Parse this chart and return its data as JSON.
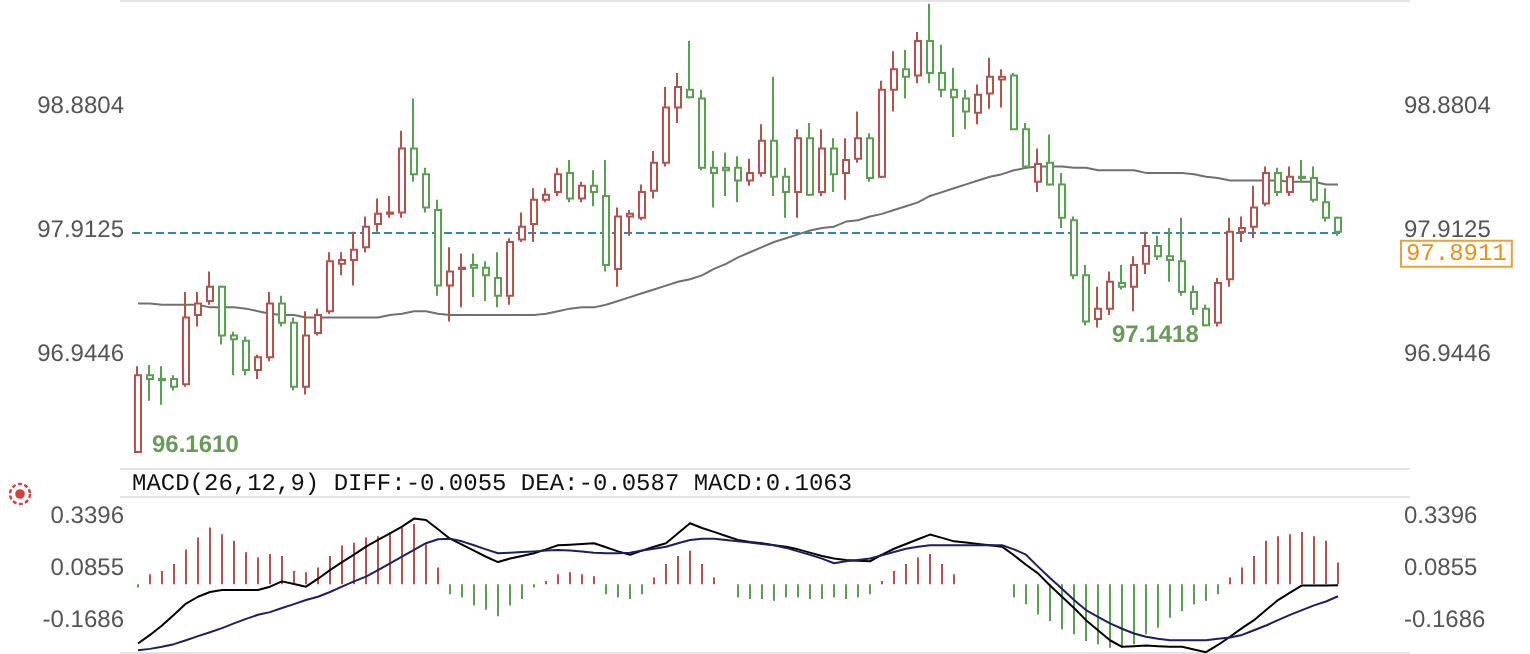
{
  "chart_data": [
    {
      "type": "candlestick",
      "categories": [
        null,
        null,
        null,
        null,
        null,
        null,
        null,
        null,
        null,
        null,
        null,
        null,
        null,
        null,
        null,
        null,
        null,
        null,
        null,
        null,
        null,
        null,
        null,
        null,
        null,
        null,
        null,
        null,
        null,
        null,
        null,
        null,
        null,
        null,
        null,
        null,
        null,
        null,
        null,
        null,
        null,
        null,
        null,
        null,
        null,
        null,
        null,
        null,
        null,
        null,
        null,
        null,
        null,
        null,
        null,
        null,
        null,
        null,
        null,
        null,
        null,
        null,
        null,
        null,
        null,
        null,
        null,
        null,
        null,
        null,
        null,
        null,
        null,
        null,
        null,
        null,
        null,
        null,
        null,
        null,
        null,
        null,
        null,
        null,
        null,
        null,
        null,
        null,
        null,
        null,
        null,
        null,
        null,
        null,
        null,
        null,
        null,
        null,
        null,
        null,
        null
      ],
      "ohlc": [
        [
          96.17,
          96.84,
          96.161,
          96.77
        ],
        [
          96.77,
          96.85,
          96.57,
          96.74
        ],
        [
          96.74,
          96.84,
          96.54,
          96.73
        ],
        [
          96.74,
          96.77,
          96.65,
          96.68
        ],
        [
          96.7,
          97.42,
          96.68,
          97.22
        ],
        [
          97.24,
          97.42,
          97.15,
          97.33
        ],
        [
          97.35,
          97.58,
          97.32,
          97.46
        ],
        [
          97.46,
          97.47,
          97.01,
          97.08
        ],
        [
          97.08,
          97.11,
          96.77,
          97.05
        ],
        [
          97.04,
          97.07,
          96.77,
          96.81
        ],
        [
          96.81,
          96.93,
          96.74,
          96.91
        ],
        [
          96.91,
          97.42,
          96.88,
          97.33
        ],
        [
          97.33,
          97.39,
          97.15,
          97.18
        ],
        [
          97.18,
          97.22,
          96.65,
          96.68
        ],
        [
          96.68,
          97.27,
          96.62,
          97.08
        ],
        [
          97.1,
          97.29,
          97.08,
          97.24
        ],
        [
          97.27,
          97.73,
          97.25,
          97.66
        ],
        [
          97.64,
          97.73,
          97.55,
          97.67
        ],
        [
          97.67,
          97.89,
          97.47,
          97.75
        ],
        [
          97.77,
          98.01,
          97.73,
          97.93
        ],
        [
          97.95,
          98.15,
          97.89,
          98.03
        ],
        [
          98.03,
          98.17,
          98.0,
          98.04
        ],
        [
          98.04,
          98.68,
          98.0,
          98.54
        ],
        [
          98.54,
          98.93,
          98.28,
          98.34
        ],
        [
          98.34,
          98.39,
          98.04,
          98.08
        ],
        [
          98.06,
          98.14,
          97.39,
          97.47
        ],
        [
          97.47,
          97.77,
          97.19,
          97.58
        ],
        [
          97.6,
          97.72,
          97.3,
          97.61
        ],
        [
          97.63,
          97.72,
          97.38,
          97.61
        ],
        [
          97.61,
          97.66,
          97.35,
          97.55
        ],
        [
          97.53,
          97.73,
          97.3,
          97.39
        ],
        [
          97.39,
          97.84,
          97.32,
          97.81
        ],
        [
          97.83,
          98.04,
          97.81,
          97.93
        ],
        [
          97.95,
          98.23,
          97.81,
          98.14
        ],
        [
          98.14,
          98.23,
          98.12,
          98.18
        ],
        [
          98.2,
          98.39,
          98.17,
          98.34
        ],
        [
          98.35,
          98.45,
          98.12,
          98.15
        ],
        [
          98.15,
          98.28,
          98.12,
          98.25
        ],
        [
          98.25,
          98.37,
          98.09,
          98.2
        ],
        [
          98.17,
          98.45,
          97.58,
          97.63
        ],
        [
          97.6,
          98.08,
          97.46,
          98.01
        ],
        [
          98.01,
          98.06,
          97.86,
          98.03
        ],
        [
          98.0,
          98.26,
          97.98,
          98.2
        ],
        [
          98.21,
          98.52,
          98.15,
          98.43
        ],
        [
          98.43,
          99.02,
          98.4,
          98.86
        ],
        [
          98.86,
          99.13,
          98.74,
          99.02
        ],
        [
          99.0,
          99.38,
          98.93,
          98.94
        ],
        [
          98.93,
          99.0,
          98.37,
          98.39
        ],
        [
          98.39,
          98.52,
          98.08,
          98.35
        ],
        [
          98.39,
          98.51,
          98.17,
          98.37
        ],
        [
          98.39,
          98.48,
          98.12,
          98.29
        ],
        [
          98.29,
          98.46,
          98.25,
          98.35
        ],
        [
          98.35,
          98.73,
          98.32,
          98.6
        ],
        [
          98.6,
          99.1,
          98.17,
          98.32
        ],
        [
          98.32,
          98.39,
          98.0,
          98.2
        ],
        [
          98.2,
          98.69,
          98.0,
          98.62
        ],
        [
          98.62,
          98.74,
          98.17,
          98.18
        ],
        [
          98.2,
          98.69,
          98.17,
          98.54
        ],
        [
          98.54,
          98.62,
          98.2,
          98.34
        ],
        [
          98.35,
          98.62,
          98.14,
          98.45
        ],
        [
          98.46,
          98.83,
          98.43,
          98.62
        ],
        [
          98.62,
          98.66,
          98.28,
          98.31
        ],
        [
          98.32,
          99.07,
          98.31,
          99.0
        ],
        [
          99.0,
          99.3,
          98.83,
          99.16
        ],
        [
          99.16,
          99.31,
          98.93,
          99.1
        ],
        [
          99.11,
          99.45,
          99.05,
          99.38
        ],
        [
          99.38,
          99.67,
          99.05,
          99.13
        ],
        [
          99.13,
          99.35,
          98.94,
          99.0
        ],
        [
          99.0,
          99.17,
          98.63,
          98.94
        ],
        [
          98.93,
          99.0,
          98.69,
          98.83
        ],
        [
          98.82,
          99.04,
          98.73,
          98.96
        ],
        [
          98.97,
          99.25,
          98.85,
          99.1
        ],
        [
          99.08,
          99.16,
          98.86,
          99.1
        ],
        [
          99.11,
          99.13,
          98.69,
          98.69
        ],
        [
          98.69,
          98.74,
          98.39,
          98.4
        ],
        [
          98.28,
          98.54,
          98.2,
          98.42
        ],
        [
          98.43,
          98.65,
          98.25,
          98.26
        ],
        [
          98.26,
          98.35,
          97.92,
          98.0
        ],
        [
          97.98,
          98.01,
          97.52,
          97.55
        ],
        [
          97.55,
          97.63,
          97.16,
          97.19
        ],
        [
          97.21,
          97.46,
          97.1418,
          97.29
        ],
        [
          97.29,
          97.58,
          97.24,
          97.5
        ],
        [
          97.49,
          97.63,
          97.44,
          97.46
        ],
        [
          97.46,
          97.7,
          97.27,
          97.63
        ],
        [
          97.64,
          97.89,
          97.56,
          97.78
        ],
        [
          97.78,
          97.86,
          97.67,
          97.7
        ],
        [
          97.7,
          97.92,
          97.5,
          97.67
        ],
        [
          97.66,
          98.0,
          97.39,
          97.42
        ],
        [
          97.42,
          97.47,
          97.24,
          97.29
        ],
        [
          97.29,
          97.32,
          97.15,
          97.16
        ],
        [
          97.18,
          97.53,
          97.15,
          97.49
        ],
        [
          97.52,
          98.0,
          97.46,
          97.89
        ],
        [
          97.89,
          98.01,
          97.81,
          97.92
        ],
        [
          97.93,
          98.25,
          97.84,
          98.08
        ],
        [
          98.11,
          98.4,
          98.09,
          98.35
        ],
        [
          98.35,
          98.39,
          98.17,
          98.2
        ],
        [
          98.2,
          98.4,
          98.17,
          98.32
        ],
        [
          98.32,
          98.45,
          98.28,
          98.31
        ],
        [
          98.31,
          98.4,
          98.12,
          98.14
        ],
        [
          98.12,
          98.23,
          97.97,
          98.0
        ],
        [
          98.0,
          98.01,
          97.86,
          97.8911
        ]
      ],
      "colors": [
        "#b5514f",
        "#5d9e55",
        "#5d9e55",
        "#5d9e55",
        "#b5514f",
        "#b5514f",
        "#b5514f",
        "#5d9e55",
        "#5d9e55",
        "#5d9e55",
        "#b5514f",
        "#b5514f",
        "#5d9e55",
        "#5d9e55",
        "#b5514f",
        "#b5514f",
        "#b5514f",
        "#b5514f",
        "#b5514f",
        "#b5514f",
        "#b5514f",
        "#b5514f",
        "#b5514f",
        "#5d9e55",
        "#5d9e55",
        "#5d9e55",
        "#b5514f",
        "#b5514f",
        "#5d9e55",
        "#5d9e55",
        "#5d9e55",
        "#b5514f",
        "#b5514f",
        "#b5514f",
        "#b5514f",
        "#b5514f",
        "#5d9e55",
        "#b5514f",
        "#5d9e55",
        "#5d9e55",
        "#b5514f",
        "#b5514f",
        "#b5514f",
        "#b5514f",
        "#b5514f",
        "#b5514f",
        "#5d9e55",
        "#5d9e55",
        "#5d9e55",
        "#5d9e55",
        "#5d9e55",
        "#b5514f",
        "#b5514f",
        "#5d9e55",
        "#5d9e55",
        "#b5514f",
        "#5d9e55",
        "#b5514f",
        "#5d9e55",
        "#b5514f",
        "#b5514f",
        "#5d9e55",
        "#b5514f",
        "#b5514f",
        "#5d9e55",
        "#b5514f",
        "#5d9e55",
        "#5d9e55",
        "#5d9e55",
        "#5d9e55",
        "#b5514f",
        "#b5514f",
        "#b5514f",
        "#5d9e55",
        "#5d9e55",
        "#b5514f",
        "#5d9e55",
        "#5d9e55",
        "#5d9e55",
        "#5d9e55",
        "#b5514f",
        "#b5514f",
        "#5d9e55",
        "#b5514f",
        "#b5514f",
        "#5d9e55",
        "#5d9e55",
        "#5d9e55",
        "#5d9e55",
        "#5d9e55",
        "#b5514f",
        "#b5514f",
        "#b5514f",
        "#b5514f",
        "#b5514f",
        "#5d9e55",
        "#b5514f",
        "#5d9e55",
        "#5d9e55",
        "#5d9e55",
        "#5d9e55"
      ],
      "series": [
        {
          "type": "line",
          "color": "#707070",
          "values": [
            97.33,
            97.33,
            97.32,
            97.32,
            97.32,
            97.32,
            97.3,
            97.3,
            97.3,
            97.29,
            97.27,
            97.25,
            97.24,
            97.24,
            97.22,
            97.22,
            97.22,
            97.22,
            97.22,
            97.22,
            97.22,
            97.24,
            97.25,
            97.27,
            97.27,
            97.25,
            97.24,
            97.24,
            97.24,
            97.24,
            97.24,
            97.24,
            97.24,
            97.24,
            97.25,
            97.27,
            97.29,
            97.3,
            97.3,
            97.32,
            97.35,
            97.38,
            97.41,
            97.44,
            97.47,
            97.5,
            97.52,
            97.55,
            97.6,
            97.64,
            97.69,
            97.73,
            97.77,
            97.81,
            97.84,
            97.87,
            97.9,
            97.92,
            97.93,
            97.97,
            97.98,
            98.01,
            98.03,
            98.06,
            98.09,
            98.12,
            98.17,
            98.2,
            98.23,
            98.26,
            98.29,
            98.32,
            98.34,
            98.37,
            98.39,
            98.4,
            98.4,
            98.4,
            98.39,
            98.39,
            98.37,
            98.37,
            98.37,
            98.37,
            98.35,
            98.35,
            98.35,
            98.35,
            98.34,
            98.32,
            98.31,
            98.29,
            98.29,
            98.29,
            98.29,
            98.29,
            98.28,
            98.28,
            98.28,
            98.26,
            98.26
          ]
        }
      ],
      "annotations": [
        "96.1610",
        "97.1418"
      ],
      "ref_lines": [
        {
          "axis": "y",
          "value": 97.8911,
          "label": "97.8911",
          "color": "#3a86a8",
          "line_style": "dashed"
        }
      ],
      "ylim": [
        96.03,
        99.7
      ],
      "yticks": [
        96.9446,
        97.9125,
        98.8804
      ],
      "y2lim": [
        96.03,
        99.7
      ],
      "y2ticks": [
        96.9446,
        97.9125,
        98.8804
      ],
      "tick_labels": "y",
      "marker": "none",
      "line_style": "solid"
    },
    {
      "type": "bar",
      "title": "MACD(26,12,9)",
      "annotations": [
        "DIFF:-0.0055",
        "DEA:-0.0587",
        "MACD:0.1063"
      ],
      "categories": [
        null,
        null,
        null,
        null,
        null,
        null,
        null,
        null,
        null,
        null,
        null,
        null,
        null,
        null,
        null,
        null,
        null,
        null,
        null,
        null,
        null,
        null,
        null,
        null,
        null,
        null,
        null,
        null,
        null,
        null,
        null,
        null,
        null,
        null,
        null,
        null,
        null,
        null,
        null,
        null,
        null,
        null,
        null,
        null,
        null,
        null,
        null,
        null,
        null,
        null,
        null,
        null,
        null,
        null,
        null,
        null,
        null,
        null,
        null,
        null,
        null,
        null,
        null,
        null,
        null,
        null,
        null,
        null,
        null,
        null,
        null,
        null,
        null,
        null,
        null,
        null,
        null,
        null,
        null,
        null,
        null,
        null,
        null,
        null,
        null,
        null,
        null,
        null,
        null,
        null,
        null,
        null,
        null,
        null,
        null,
        null,
        null,
        null,
        null,
        null,
        null
      ],
      "series": [
        {
          "type": "bar",
          "color": "#b5514f",
          "values": [
            null,
            0.049,
            0.065,
            0.098,
            0.169,
            0.228,
            0.277,
            0.244,
            0.212,
            0.156,
            0.13,
            0.147,
            0.137,
            0.065,
            0.059,
            0.081,
            0.137,
            0.189,
            0.202,
            0.228,
            0.234,
            0.254,
            0.277,
            0.293,
            0.195,
            0.081,
            null,
            null,
            null,
            null,
            null,
            null,
            null,
            null,
            0.016,
            0.049,
            0.059,
            0.049,
            0.039,
            null,
            null,
            null,
            null,
            0.033,
            0.098,
            0.137,
            0.163,
            0.098,
            0.033,
            0,
            null,
            null,
            null,
            null,
            null,
            null,
            null,
            null,
            null,
            null,
            null,
            null,
            0.016,
            0.065,
            0.098,
            0.13,
            0.147,
            0.098,
            0.049,
            0,
            0,
            0,
            0,
            null,
            null,
            null,
            null,
            null,
            null,
            null,
            null,
            null,
            null,
            null,
            null,
            null,
            null,
            null,
            null,
            null,
            null,
            0.033,
            0.081,
            0.137,
            0.212,
            0.234,
            0.244,
            0.254,
            0.234,
            0.212,
            0.1063
          ]
        },
        {
          "type": "bar",
          "color": "#5d9e55",
          "values": [
            -0.016,
            null,
            null,
            null,
            null,
            null,
            null,
            null,
            null,
            null,
            null,
            null,
            null,
            null,
            null,
            null,
            null,
            null,
            null,
            null,
            null,
            null,
            null,
            null,
            null,
            null,
            -0.049,
            -0.065,
            -0.104,
            -0.124,
            -0.156,
            -0.104,
            -0.072,
            -0.016,
            null,
            null,
            null,
            null,
            null,
            -0.049,
            -0.065,
            -0.072,
            -0.049,
            null,
            null,
            null,
            null,
            null,
            null,
            null,
            -0.065,
            -0.072,
            -0.072,
            -0.081,
            -0.065,
            -0.065,
            -0.072,
            -0.072,
            -0.065,
            -0.072,
            -0.065,
            -0.049,
            null,
            null,
            null,
            null,
            null,
            null,
            null,
            null,
            null,
            null,
            null,
            -0.065,
            -0.098,
            -0.147,
            -0.179,
            -0.221,
            -0.244,
            -0.277,
            -0.293,
            -0.309,
            -0.309,
            -0.293,
            -0.244,
            -0.212,
            -0.163,
            -0.13,
            -0.098,
            -0.081,
            -0.049,
            null,
            null,
            null,
            null,
            null,
            null,
            null,
            null,
            null,
            null
          ]
        },
        {
          "type": "line",
          "color": "#000000",
          "values": [
            -0.289,
            -0.247,
            -0.201,
            -0.149,
            -0.094,
            -0.061,
            -0.038,
            -0.028,
            -0.028,
            -0.028,
            -0.028,
            -0.012,
            0.014,
            0.001,
            -0.012,
            0.027,
            0.069,
            0.108,
            0.144,
            0.183,
            0.216,
            0.248,
            0.281,
            0.32,
            0.313,
            0.268,
            0.222,
            0.193,
            0.164,
            0.134,
            0.108,
            0.125,
            0.138,
            0.151,
            0.17,
            0.19,
            0.193,
            0.196,
            0.2,
            0.18,
            0.16,
            0.144,
            0.164,
            0.183,
            0.2,
            0.248,
            0.297,
            0.274,
            0.255,
            0.235,
            0.216,
            0.206,
            0.2,
            0.19,
            0.183,
            0.17,
            0.154,
            0.138,
            0.125,
            0.118,
            0.115,
            0.112,
            0.144,
            0.173,
            0.196,
            0.219,
            0.242,
            0.226,
            0.209,
            0.203,
            0.196,
            0.19,
            0.183,
            0.141,
            0.095,
            0.053,
            -0.006,
            -0.061,
            -0.116,
            -0.175,
            -0.224,
            -0.273,
            -0.305,
            -0.302,
            -0.299,
            -0.302,
            -0.305,
            -0.305,
            -0.318,
            -0.331,
            -0.296,
            -0.256,
            -0.214,
            -0.175,
            -0.126,
            -0.077,
            -0.041,
            -0.006,
            -0.006,
            -0.006,
            -0.0055
          ]
        },
        {
          "type": "line",
          "color": "#1f1f5e",
          "values": [
            -0.322,
            -0.315,
            -0.305,
            -0.292,
            -0.273,
            -0.253,
            -0.234,
            -0.214,
            -0.191,
            -0.169,
            -0.149,
            -0.136,
            -0.116,
            -0.097,
            -0.077,
            -0.061,
            -0.038,
            -0.012,
            0.014,
            0.037,
            0.069,
            0.102,
            0.134,
            0.167,
            0.2,
            0.219,
            0.222,
            0.209,
            0.19,
            0.17,
            0.151,
            0.154,
            0.157,
            0.16,
            0.164,
            0.167,
            0.164,
            0.16,
            0.154,
            0.151,
            0.151,
            0.154,
            0.164,
            0.173,
            0.183,
            0.2,
            0.216,
            0.222,
            0.222,
            0.216,
            0.209,
            0.203,
            0.196,
            0.19,
            0.177,
            0.16,
            0.144,
            0.125,
            0.102,
            0.112,
            0.118,
            0.125,
            0.141,
            0.157,
            0.173,
            0.183,
            0.19,
            0.19,
            0.19,
            0.19,
            0.19,
            0.19,
            0.19,
            0.17,
            0.144,
            0.086,
            0.03,
            -0.022,
            -0.077,
            -0.126,
            -0.159,
            -0.191,
            -0.217,
            -0.24,
            -0.256,
            -0.266,
            -0.273,
            -0.273,
            -0.273,
            -0.273,
            -0.266,
            -0.26,
            -0.247,
            -0.224,
            -0.201,
            -0.175,
            -0.149,
            -0.126,
            -0.103,
            -0.084,
            -0.0587
          ]
        }
      ],
      "ylim": [
        -0.34,
        0.43
      ],
      "yticks": [
        -0.1686,
        0.0855,
        0.3396
      ],
      "y2lim": [
        -0.34,
        0.43
      ],
      "y2ticks": [
        -0.1686,
        0.0855,
        0.3396
      ],
      "tick_labels": "y",
      "marker": "none",
      "line_style": "solid"
    }
  ]
}
